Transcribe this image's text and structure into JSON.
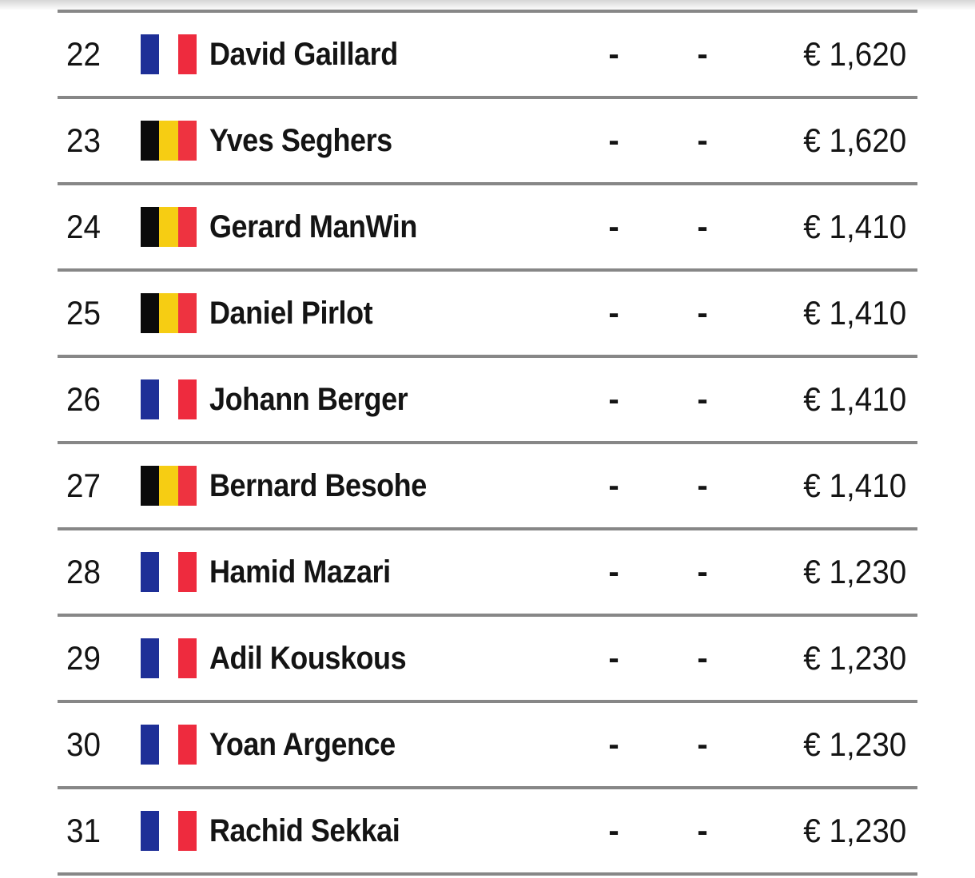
{
  "colors": {
    "background": "#ffffff",
    "divider": "#878787",
    "text": "#141414"
  },
  "flags": {
    "FR": {
      "name": "France",
      "stripes": [
        "#1E2F97",
        "#FFFFFF",
        "#EE2B3E"
      ]
    },
    "BE": {
      "name": "Belgium",
      "stripes": [
        "#0B0B0B",
        "#F6CD13",
        "#EE3340"
      ]
    }
  },
  "table": {
    "rows": [
      {
        "rank": "22",
        "country": "FR",
        "player": "David Gaillard",
        "score1": "-",
        "score2": "-",
        "prize": "€ 1,620"
      },
      {
        "rank": "23",
        "country": "BE",
        "player": "Yves Seghers",
        "score1": "-",
        "score2": "-",
        "prize": "€ 1,620"
      },
      {
        "rank": "24",
        "country": "BE",
        "player": "Gerard ManWin",
        "score1": "-",
        "score2": "-",
        "prize": "€ 1,410"
      },
      {
        "rank": "25",
        "country": "BE",
        "player": "Daniel Pirlot",
        "score1": "-",
        "score2": "-",
        "prize": "€ 1,410"
      },
      {
        "rank": "26",
        "country": "FR",
        "player": "Johann Berger",
        "score1": "-",
        "score2": "-",
        "prize": "€ 1,410"
      },
      {
        "rank": "27",
        "country": "BE",
        "player": "Bernard Besohe",
        "score1": "-",
        "score2": "-",
        "prize": "€ 1,410"
      },
      {
        "rank": "28",
        "country": "FR",
        "player": "Hamid Mazari",
        "score1": "-",
        "score2": "-",
        "prize": "€ 1,230"
      },
      {
        "rank": "29",
        "country": "FR",
        "player": "Adil Kouskous",
        "score1": "-",
        "score2": "-",
        "prize": "€ 1,230"
      },
      {
        "rank": "30",
        "country": "FR",
        "player": "Yoan Argence",
        "score1": "-",
        "score2": "-",
        "prize": "€ 1,230"
      },
      {
        "rank": "31",
        "country": "FR",
        "player": "Rachid Sekkai",
        "score1": "-",
        "score2": "-",
        "prize": "€ 1,230"
      }
    ]
  }
}
